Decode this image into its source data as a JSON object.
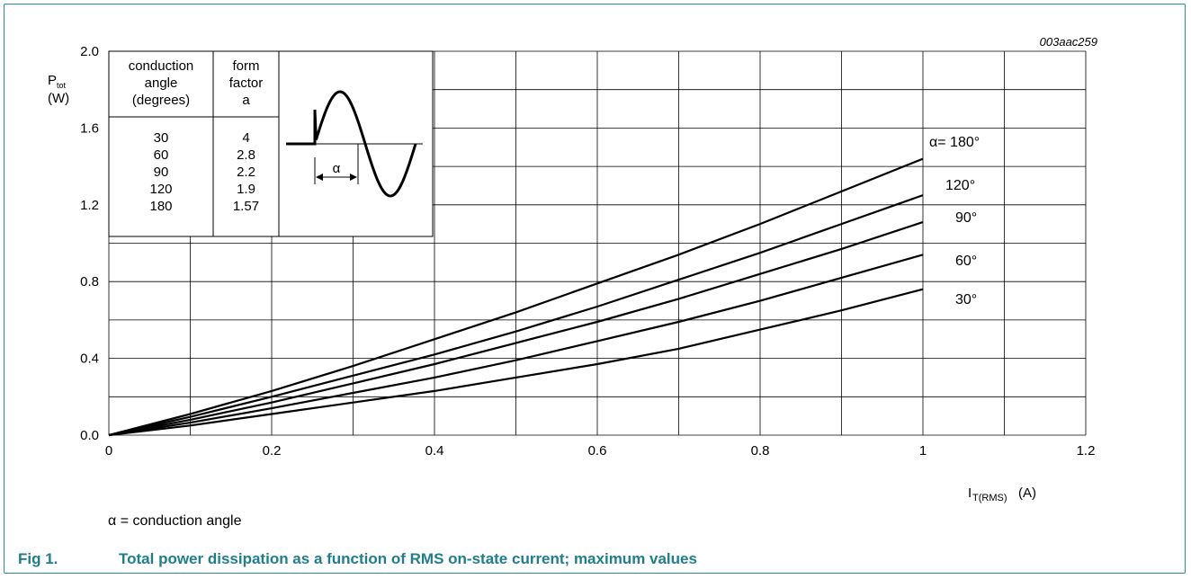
{
  "chart_data": {
    "type": "line",
    "figure_code": "003aac259",
    "ylabel_main": "P",
    "ylabel_sub": "tot",
    "ylabel_unit": "(W)",
    "xlabel_main": "I",
    "xlabel_sub": "T(RMS)",
    "xlabel_unit": "(A)",
    "xlim": [
      0,
      1.2
    ],
    "ylim": [
      0,
      2.0
    ],
    "x_ticks": [
      "0",
      "0.2",
      "0.4",
      "0.6",
      "0.8",
      "1",
      "1.2"
    ],
    "y_ticks": [
      "0.0",
      "0.4",
      "0.8",
      "1.2",
      "1.6",
      "2.0"
    ],
    "x_tick_values": [
      0,
      0.2,
      0.4,
      0.6,
      0.8,
      1.0,
      1.2
    ],
    "y_tick_values": [
      0,
      0.4,
      0.8,
      1.2,
      1.6,
      2.0
    ],
    "grid": true,
    "x": [
      0,
      0.1,
      0.2,
      0.3,
      0.4,
      0.5,
      0.6,
      0.7,
      0.8,
      0.9,
      1.0
    ],
    "series": [
      {
        "name": "α= 180°",
        "label": "α= 180°",
        "values": [
          0,
          0.11,
          0.23,
          0.36,
          0.5,
          0.64,
          0.79,
          0.94,
          1.1,
          1.27,
          1.44
        ]
      },
      {
        "name": "120°",
        "label": "120°",
        "values": [
          0,
          0.095,
          0.2,
          0.31,
          0.42,
          0.54,
          0.67,
          0.81,
          0.95,
          1.1,
          1.25
        ]
      },
      {
        "name": "90°",
        "label": "90°",
        "values": [
          0,
          0.08,
          0.17,
          0.27,
          0.37,
          0.48,
          0.59,
          0.71,
          0.84,
          0.97,
          1.11
        ]
      },
      {
        "name": "60°",
        "label": "60°",
        "values": [
          0,
          0.065,
          0.14,
          0.22,
          0.3,
          0.39,
          0.49,
          0.59,
          0.7,
          0.82,
          0.94
        ]
      },
      {
        "name": "30°",
        "label": "30°",
        "values": [
          0,
          0.05,
          0.11,
          0.17,
          0.23,
          0.3,
          0.37,
          0.45,
          0.55,
          0.65,
          0.76
        ]
      }
    ],
    "inset_table": {
      "headers": [
        "conduction angle (degrees)",
        "form factor a"
      ],
      "header_lines": [
        [
          "conduction",
          "angle",
          "(degrees)"
        ],
        [
          "form",
          "factor",
          "a"
        ]
      ],
      "rows": [
        [
          "30",
          "4"
        ],
        [
          "60",
          "2.8"
        ],
        [
          "90",
          "2.2"
        ],
        [
          "120",
          "1.9"
        ],
        [
          "180",
          "1.57"
        ]
      ]
    },
    "inset_waveform_label": "α"
  },
  "note": "α = conduction angle",
  "caption": {
    "number": "Fig 1.",
    "text": "Total power dissipation as a function of RMS on-state current; maximum values"
  }
}
